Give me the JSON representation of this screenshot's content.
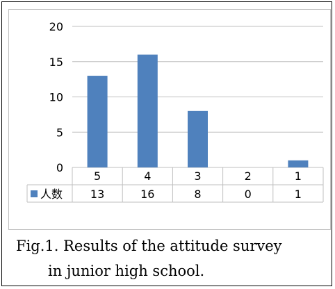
{
  "chart_data": {
    "type": "bar",
    "categories": [
      "5",
      "4",
      "3",
      "2",
      "1"
    ],
    "series": [
      {
        "name": "人数",
        "values": [
          13,
          16,
          8,
          0,
          1
        ],
        "color": "#4f81bd"
      }
    ],
    "ylim": [
      0,
      20
    ],
    "yticks": [
      0,
      5,
      10,
      15,
      20
    ],
    "grid": true,
    "legend": "data-table-left",
    "title": "",
    "xlabel": "",
    "ylabel": ""
  },
  "caption": {
    "line1": "Fig.1. Results of the attitude survey",
    "line2": "in junior high school."
  }
}
